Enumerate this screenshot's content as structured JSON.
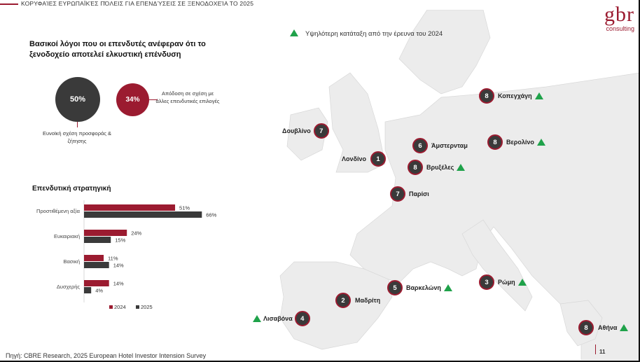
{
  "header": {
    "title": "Κορυφαίες ευρωπαϊκές πόλεις για επενδύσεις σε ξενοδοχεία το 2025"
  },
  "logo": {
    "mark": "gbr",
    "sub": "consulting"
  },
  "legend_top": {
    "text": "Υψηλότερη κατάταξη από την έρευνα του 2024",
    "icon": "green-triangle-icon",
    "color": "#1fa24a"
  },
  "reasons": {
    "title": "Βασικοί λόγοι που οι επενδυτές ανέφεραν ότι το ξενοδοχείο αποτελεί ελκυστική επένδυση",
    "items": [
      {
        "value": "50%",
        "label": "Ευνοϊκή σχέση προσφοράς & ζήτησης",
        "color": "#3a3a3a"
      },
      {
        "value": "34%",
        "label": "Απόδοση σε σχέση με άλλες επενδυτικές επιλογές",
        "color": "#9b1b30"
      }
    ]
  },
  "strategy": {
    "title": "Επενδυτική στρατηγική"
  },
  "chart_data": {
    "type": "bar",
    "orientation": "horizontal",
    "categories": [
      "Προστιθέμενη αξία",
      "Ευκαιριακή",
      "Βασική",
      "Δυσχερής"
    ],
    "series": [
      {
        "name": "2024",
        "values": [
          51,
          24,
          11,
          14
        ],
        "color": "#9b1b30"
      },
      {
        "name": "2025",
        "values": [
          66,
          15,
          14,
          4
        ],
        "color": "#3a3a3a"
      }
    ],
    "value_suffix": "%",
    "xlim": [
      0,
      100
    ],
    "legend": "bottom"
  },
  "cities": [
    {
      "name": "Κοπεγχάγη",
      "rank": "8",
      "up": true
    },
    {
      "name": "Δουβλίνο",
      "rank": "7",
      "up": false
    },
    {
      "name": "Άμστερνταμ",
      "rank": "6",
      "up": false
    },
    {
      "name": "Βερολίνο",
      "rank": "8",
      "up": true
    },
    {
      "name": "Λονδίνο",
      "rank": "1",
      "up": false
    },
    {
      "name": "Βρυξέλες",
      "rank": "8",
      "up": true
    },
    {
      "name": "Παρίσι",
      "rank": "7",
      "up": false
    },
    {
      "name": "Βαρκελώνη",
      "rank": "5",
      "up": true
    },
    {
      "name": "Ρώμη",
      "rank": "3",
      "up": true
    },
    {
      "name": "Μαδρίτη",
      "rank": "2",
      "up": false
    },
    {
      "name": "Λισαβόνα",
      "rank": "4",
      "up": true
    },
    {
      "name": "Αθήνα",
      "rank": "8",
      "up": true
    }
  ],
  "footer": {
    "source": "Πηγή: CBRE Research, 2025 European Hotel Investor Intension Survey",
    "page": "11"
  }
}
